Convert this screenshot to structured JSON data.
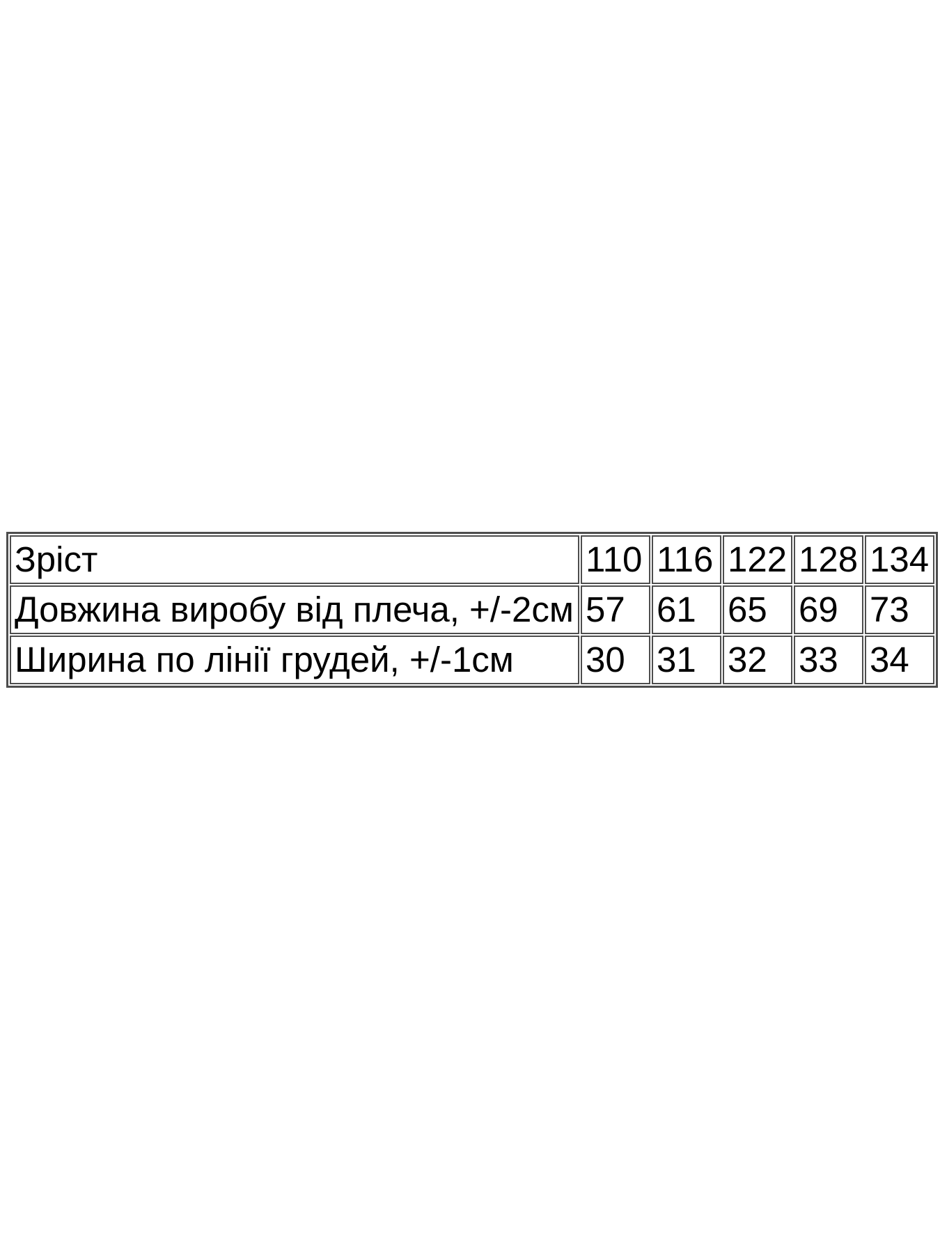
{
  "size_table": {
    "header": {
      "label": "Зріст",
      "sizes": [
        "110",
        "116",
        "122",
        "128",
        "134"
      ]
    },
    "rows": [
      {
        "label": "Довжина виробу від плеча, +/-2см",
        "values": [
          "57",
          "61",
          "65",
          "69",
          "73"
        ]
      },
      {
        "label": "Ширина по лінії грудей, +/-1см",
        "values": [
          "30",
          "31",
          "32",
          "33",
          "34"
        ]
      }
    ],
    "border_color": "#4d4d4d",
    "text_color": "#000000",
    "background_color": "#ffffff"
  },
  "chart_data": {
    "type": "table",
    "columns": [
      "Зріст",
      "110",
      "116",
      "122",
      "128",
      "134"
    ],
    "rows": [
      [
        "Довжина виробу від плеча, +/-2см",
        57,
        61,
        65,
        69,
        73
      ],
      [
        "Ширина по лінії грудей, +/-1см",
        30,
        31,
        32,
        33,
        34
      ]
    ],
    "notes": "Size chart: product length from shoulder (+/-2cm) and width at chest line (+/-1cm) per height size"
  }
}
